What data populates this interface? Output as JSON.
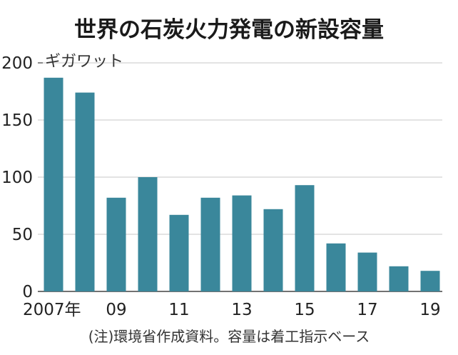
{
  "chart_data": {
    "type": "bar",
    "title": "世界の石炭火力発電の新設容量",
    "unit_label": "ギガワット",
    "categories": [
      "2007",
      "2008",
      "2009",
      "2010",
      "2011",
      "2012",
      "2013",
      "2014",
      "2015",
      "2016",
      "2017",
      "2018",
      "2019"
    ],
    "values": [
      187,
      174,
      82,
      100,
      67,
      82,
      84,
      72,
      93,
      42,
      34,
      22,
      18
    ],
    "x_tick_labels": [
      {
        "index": 0,
        "label": "2007年"
      },
      {
        "index": 2,
        "label": "09"
      },
      {
        "index": 4,
        "label": "11"
      },
      {
        "index": 6,
        "label": "13"
      },
      {
        "index": 8,
        "label": "15"
      },
      {
        "index": 10,
        "label": "17"
      },
      {
        "index": 12,
        "label": "19"
      }
    ],
    "y_ticks": [
      "0",
      "50",
      "100",
      "150",
      "200"
    ],
    "ylim": [
      0,
      200
    ],
    "note": "(注)環境省作成資料。容量は着工指示ベース",
    "bar_color": "#3a879b",
    "grid_color": "#d2d2d2"
  }
}
